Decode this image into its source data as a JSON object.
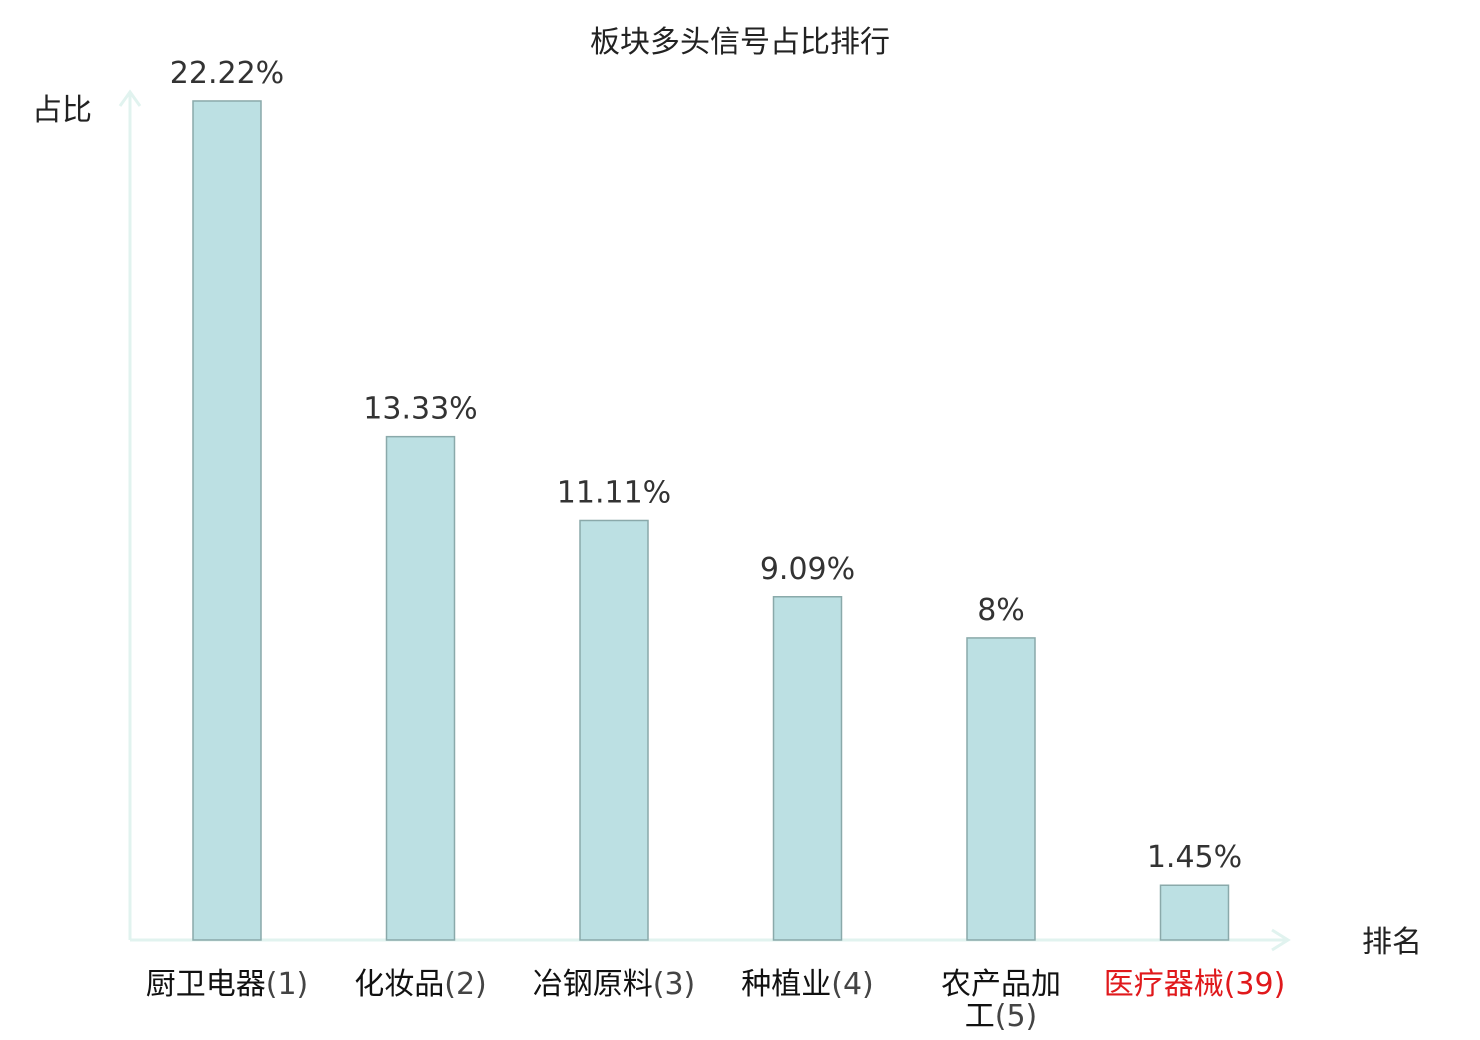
{
  "chart_data": {
    "type": "bar",
    "title": "板块多头信号占比排行",
    "ylabel": "占比",
    "xlabel": "排名",
    "categories": [
      {
        "name": "厨卫电器",
        "rank": "(1)",
        "highlight": false
      },
      {
        "name": "化妆品",
        "rank": "(2)",
        "highlight": false
      },
      {
        "name": "冶钢原料",
        "rank": "(3)",
        "highlight": false
      },
      {
        "name": "种植业",
        "rank": "(4)",
        "highlight": false
      },
      {
        "name": "农产品加",
        "name2": "工",
        "rank": "(5)",
        "highlight": false
      },
      {
        "name": "医疗器械",
        "rank": "(39)",
        "highlight": true
      }
    ],
    "values": [
      22.22,
      13.33,
      11.11,
      9.09,
      8,
      1.45
    ],
    "value_labels": [
      "22.22%",
      "13.33%",
      "11.11%",
      "9.09%",
      "8%",
      "1.45%"
    ],
    "ylim": [
      0,
      25
    ],
    "colors": {
      "bar_fill": "#bce0e3",
      "bar_stroke": "#8aa9aa",
      "axis": "#e1f3ef",
      "text": "#333333",
      "highlight": "#e0191c",
      "label_normal_name": "#111111",
      "label_normal_rank": "#444444"
    }
  }
}
